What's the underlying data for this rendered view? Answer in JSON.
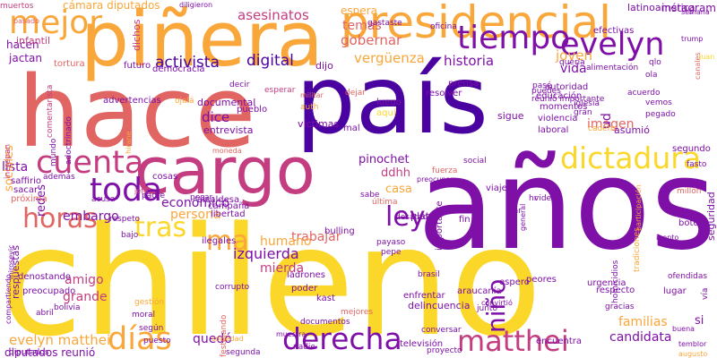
{
  "palette": [
    "#fbd72a",
    "#f9a63a",
    "#e16562",
    "#c33d80",
    "#7e10a7",
    "#4a02a0"
  ],
  "words": [
    "hace",
    "país",
    "años",
    "chileno",
    "cargo",
    "piñera",
    "presidencial",
    "tiempo",
    "evelyn",
    "mejor",
    "toda",
    "cuenta",
    "dictadura",
    "ley",
    "horas",
    "tras",
    "ma",
    "derecha",
    "matthei",
    "días",
    "niño",
    "asesinatos",
    "activista",
    "digital",
    "instagram",
    "historia",
    "joven",
    "vergüenza",
    "gobernar",
    "temas",
    "espera",
    "imagen",
    "vida",
    "ud",
    "pinochet",
    "ddhh",
    "casa",
    "trabajar",
    "izquierda",
    "mierda",
    "humano",
    "económico",
    "persona",
    "embargo",
    "amigo",
    "grande",
    "lista",
    "sociales",
    "redes",
    "evelyn matthei",
    "quedó",
    "candidata",
    "familias",
    "diputados reunió",
    "cámara diputados",
    "muertos",
    "hacen",
    "jactan",
    "infantil",
    "dichos",
    "latinoamérica",
    "dice",
    "documental",
    "entrevista",
    "dijo",
    "efectivas",
    "canales",
    "semana",
    "juan",
    "aquí",
    "resolver",
    "autoridad",
    "educación",
    "momentos",
    "prensa",
    "luego",
    "cadem",
    "violencia",
    "laboral",
    "asumió",
    "segundo",
    "millón",
    "seguridad",
    "sigue",
    "tortura",
    "futuro",
    "democracia",
    "ojalá",
    "advertencias",
    "comentarista",
    "víctimas",
    "pueblo",
    "esperar",
    "militar",
    "mal",
    "cosas",
    "saffirio",
    "sacar",
    "próxima",
    "además",
    "acusa",
    "alcaldesa",
    "respeto",
    "libertad",
    "campaña",
    "respuestas",
    "denostando",
    "preocupado",
    "bajo",
    "abril",
    "gestión",
    "moral",
    "según",
    "puesto",
    "diputados",
    "mirosevic",
    "compartiendo",
    "bolivia",
    "ilegales",
    "ladrones",
    "poder",
    "kast",
    "documentos",
    "mejores",
    "enfrentar",
    "delincuencia",
    "araucanía",
    "peores",
    "espero",
    "junto",
    "urgencia",
    "respecto",
    "lugar",
    "gracias",
    "si",
    "tradiciones",
    "buena",
    "homicidios",
    "convirtió",
    "televisión",
    "proyecto",
    "encuentra",
    "nadie",
    "segunda",
    "muestra",
    "sociedad",
    "corrupto",
    "moneda",
    "padre",
    "jefe",
    "pesar",
    "brasil",
    "fuerza",
    "social",
    "fin",
    "video",
    "viaje",
    "plata",
    "dar",
    "importante",
    "botón",
    "general",
    "preocupan",
    "bulling",
    "desatada",
    "payaso",
    "pepe",
    "conversar",
    "fasto",
    "festejando",
    "participación",
    "inepto",
    "ofendidas",
    "temblor",
    "augusto",
    "vía",
    "hr",
    "sabe",
    "última",
    "adoctrinado",
    "trump",
    "mundo",
    "pasado",
    "increpan",
    "pegado",
    "vemos",
    "acuerdo",
    "ola",
    "puedes",
    "reunió importante",
    "pasé",
    "quería",
    "alimentación",
    "qlo",
    "oficina",
    "gastaste",
    "dejar",
    "decir",
    "auth",
    "hirane",
    "diligieron",
    "gran",
    "iglesia",
    "publicas"
  ]
}
